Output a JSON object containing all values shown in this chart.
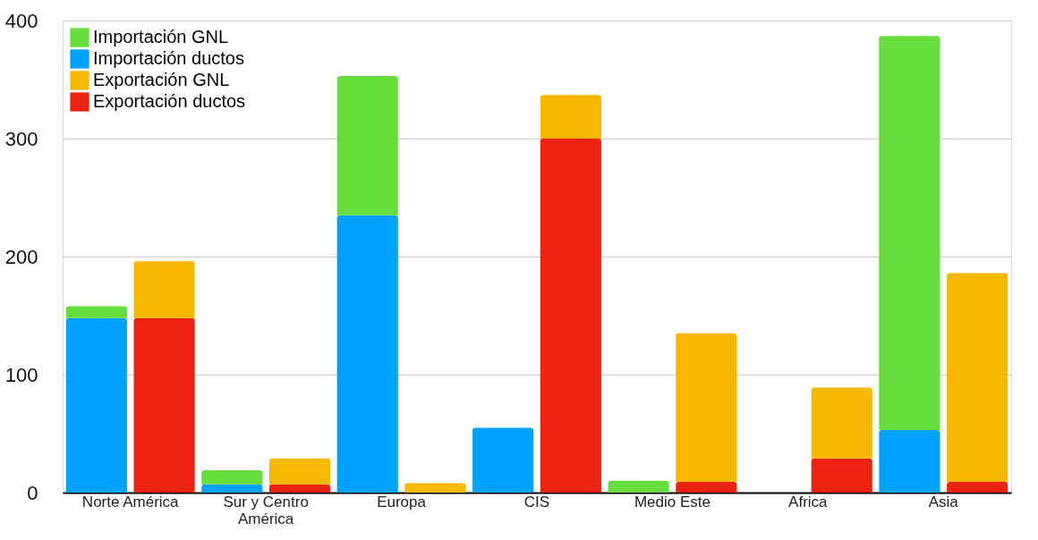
{
  "chart_data": {
    "type": "bar",
    "stacked": true,
    "categories": [
      "Norte América",
      null,
      "Sur y Centro América",
      null,
      "Europa",
      null,
      "CIS",
      null,
      "Medio Este",
      null,
      "Africa",
      null,
      "Asia",
      null
    ],
    "series": [
      {
        "name": "Importación ductos",
        "color": "#00a2ff",
        "values": [
          148,
          null,
          7,
          null,
          235,
          null,
          55,
          null,
          0,
          null,
          0,
          null,
          53,
          null
        ]
      },
      {
        "name": "Importación GNL",
        "color": "#66dd3a",
        "values": [
          10,
          null,
          12,
          null,
          118,
          null,
          0,
          null,
          10,
          null,
          0,
          null,
          334,
          null
        ]
      },
      {
        "name": "Exportación ductos",
        "color": "#ee2211",
        "values": [
          null,
          148,
          null,
          7,
          null,
          0,
          null,
          300,
          null,
          9,
          null,
          29,
          null,
          9
        ]
      },
      {
        "name": "Exportación GNL",
        "color": "#f6b800",
        "values": [
          null,
          48,
          null,
          22,
          null,
          8,
          null,
          37,
          null,
          126,
          null,
          60,
          null,
          177
        ]
      }
    ],
    "ylim": [
      0,
      400
    ],
    "yticks": [
      0,
      100,
      200,
      300,
      400
    ],
    "grid": "y",
    "legend": "top left"
  }
}
